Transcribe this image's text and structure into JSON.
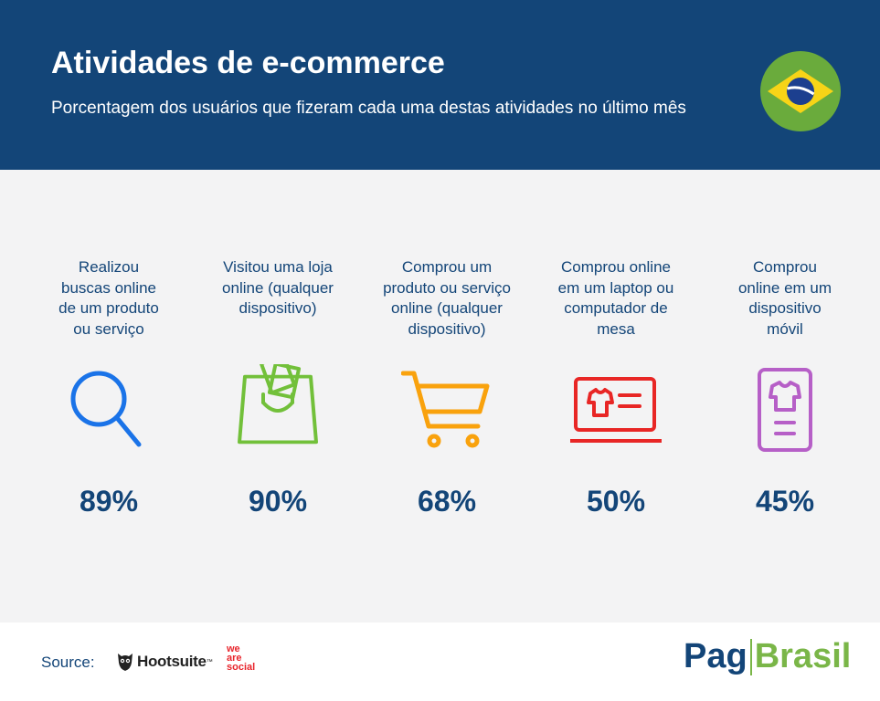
{
  "header": {
    "title": "Atividades de e-commerce",
    "subtitle": "Porcentagem dos usuários que fizeram cada uma destas atividades no último mês"
  },
  "chart_data": {
    "type": "table",
    "unit": "%",
    "categories": [
      "Realizou buscas online de um produto ou serviço",
      "Visitou uma loja online (qualquer dispositivo)",
      "Comprou um produto ou serviço online (qualquer dispositivo)",
      "Comprou online em um laptop ou computador de mesa",
      "Comprou online em um dispositivo móvil"
    ],
    "values": [
      89,
      90,
      68,
      50,
      45
    ]
  },
  "items": [
    {
      "lines": [
        "Realizou",
        "buscas online",
        "de um produto",
        "ou serviço"
      ],
      "value_text": "89%",
      "icon": "search-icon",
      "color": "#1a73e8"
    },
    {
      "lines": [
        "Visitou uma loja",
        "online (qualquer",
        "dispositivo)"
      ],
      "value_text": "90%",
      "icon": "shopping-bag-icon",
      "color": "#72c03a"
    },
    {
      "lines": [
        "Comprou um",
        "produto ou serviço",
        "online (qualquer",
        "dispositivo)"
      ],
      "value_text": "68%",
      "icon": "shopping-cart-icon",
      "color": "#f9a20d"
    },
    {
      "lines": [
        "Comprou online",
        "em um laptop ou",
        "computador de",
        "mesa"
      ],
      "value_text": "50%",
      "icon": "laptop-shirt-icon",
      "color": "#e82625"
    },
    {
      "lines": [
        "Comprou",
        "online em um",
        "dispositivo",
        "móvil"
      ],
      "value_text": "45%",
      "icon": "mobile-shirt-icon",
      "color": "#b65fc7"
    }
  ],
  "footer": {
    "source_label": "Source:",
    "hootsuite": "Hootsuite",
    "hootsuite_tm": "™",
    "wearesocial": [
      "we",
      "are",
      "social"
    ],
    "brand_a": "Pag",
    "brand_b": "Brasil"
  }
}
